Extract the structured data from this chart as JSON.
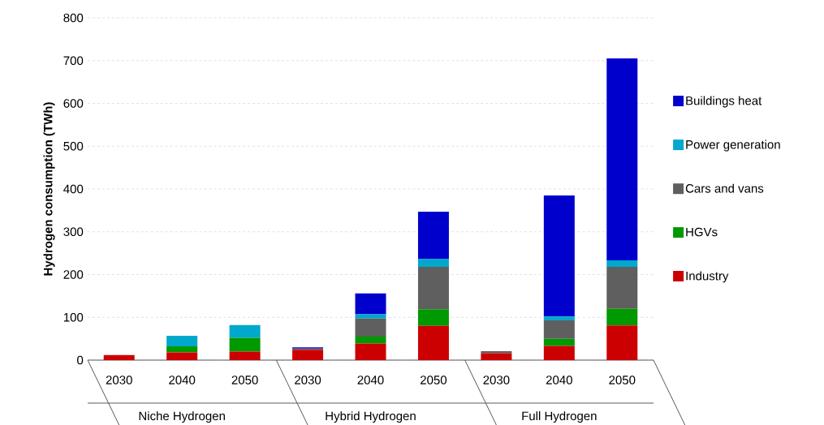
{
  "chart_data": {
    "type": "bar",
    "stacked": true,
    "ylabel": "Hydrogen consumption (TWh)",
    "categories": [
      "2030",
      "2040",
      "2050",
      "2030",
      "2040",
      "2050",
      "2030",
      "2040",
      "2050"
    ],
    "annotations": [
      "Niche Hydrogen",
      "Hybrid Hydrogen",
      "Full Hydrogen"
    ],
    "series": [
      {
        "name": "Industry",
        "color": "#cc0000",
        "values": [
          12,
          18,
          20,
          24,
          39,
          80,
          16,
          33,
          81
        ]
      },
      {
        "name": "HGVs",
        "color": "#009900",
        "values": [
          0,
          14,
          32,
          0,
          16,
          39,
          0,
          17,
          39
        ]
      },
      {
        "name": "Cars and vans",
        "color": "#5f5f5f",
        "values": [
          0,
          0,
          0,
          3,
          42,
          99,
          5,
          43,
          98
        ]
      },
      {
        "name": "Power generation",
        "color": "#00a8cc",
        "values": [
          0,
          25,
          30,
          0,
          10,
          18,
          0,
          9,
          15
        ]
      },
      {
        "name": "Buildings heat",
        "color": "#0000cc",
        "values": [
          0,
          0,
          0,
          3,
          49,
          111,
          0,
          283,
          472
        ]
      }
    ],
    "ylim": [
      0,
      800
    ],
    "yticks": [
      0,
      100,
      200,
      300,
      400,
      500,
      600,
      700,
      800
    ],
    "grid": "y",
    "legend": "right"
  }
}
